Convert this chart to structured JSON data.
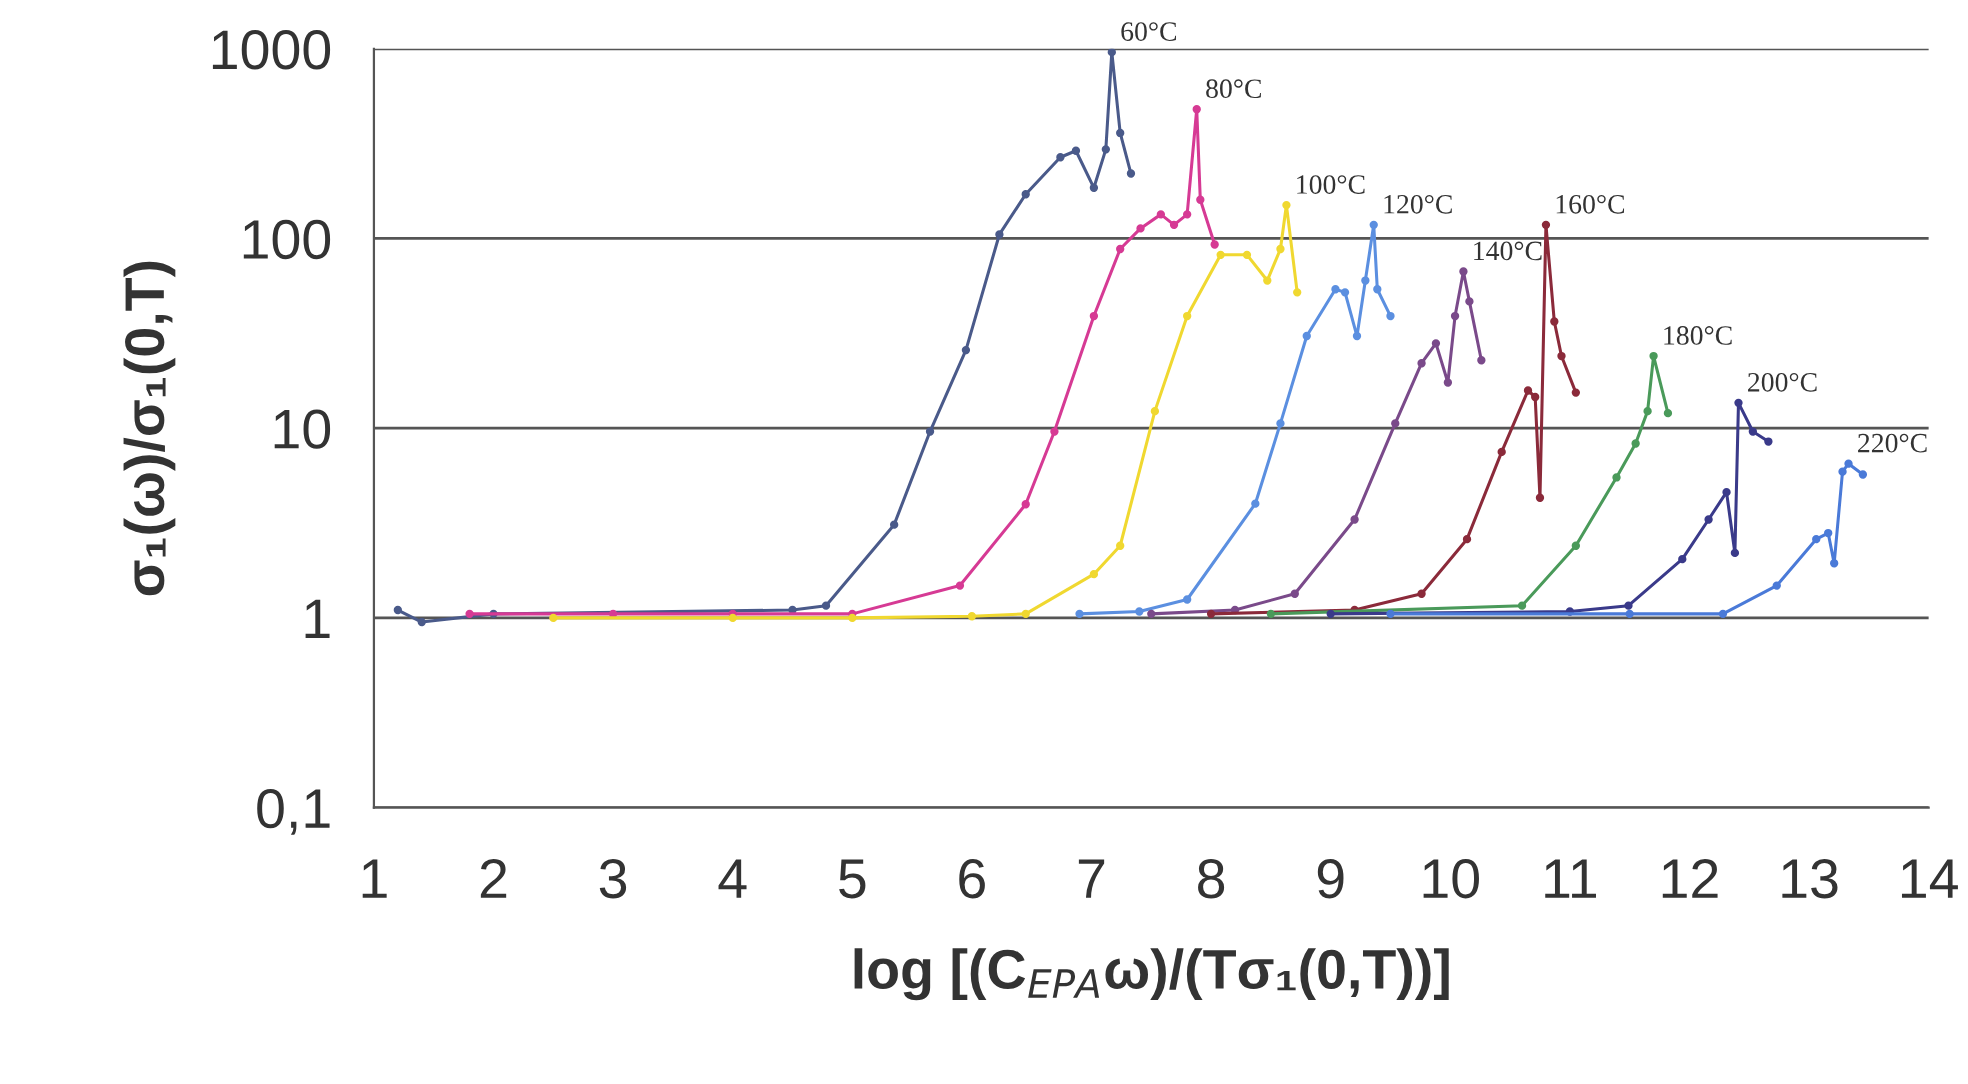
{
  "chart_data": {
    "type": "line",
    "xlabel": "log [(C$_{EPA}$ω)/(Tσ₁(0,T))]",
    "ylabel": "σ₁(ω)/σ₁(0,T)",
    "log": "y",
    "grid": "y",
    "legend": false,
    "marker": "circle",
    "line_style": "solid",
    "xlim": [
      1,
      14
    ],
    "xticks": [
      1,
      2,
      3,
      4,
      5,
      6,
      7,
      8,
      9,
      10,
      11,
      12,
      13,
      14
    ],
    "ylim": [
      0.1,
      1000
    ],
    "yticks": [
      {
        "value": 0.1,
        "label": "0,1"
      },
      1,
      10,
      100,
      1000
    ],
    "series": [
      {
        "name": "60°C",
        "color": "#4a5a8a",
        "x": [
          1.2,
          1.4,
          2,
          4.5,
          4.78,
          5.35,
          5.65,
          5.95,
          6.23,
          6.45,
          6.74,
          6.87,
          7.02,
          7.12,
          7.17,
          7.24,
          7.33
        ],
        "values": [
          1.1,
          0.95,
          1.05,
          1.1,
          1.16,
          3.1,
          9.6,
          25.8,
          105,
          171,
          268,
          290,
          185,
          295,
          960,
          360,
          220
        ]
      },
      {
        "name": "80°C",
        "color": "#d63a94",
        "x": [
          1.8,
          3,
          4,
          5,
          5.9,
          6.45,
          6.69,
          7.02,
          7.24,
          7.41,
          7.58,
          7.69,
          7.8,
          7.88,
          7.91,
          8.03
        ],
        "values": [
          1.05,
          1.05,
          1.05,
          1.05,
          1.48,
          3.97,
          9.6,
          39,
          88,
          113,
          134,
          118,
          134,
          480,
          160,
          93
        ]
      },
      {
        "name": "100°C",
        "color": "#f0d830",
        "x": [
          2.5,
          4,
          5,
          6,
          6.45,
          7.02,
          7.24,
          7.53,
          7.8,
          8.08,
          8.3,
          8.47,
          8.58,
          8.63,
          8.72
        ],
        "values": [
          1.0,
          1.0,
          1.0,
          1.02,
          1.05,
          1.7,
          2.4,
          12.3,
          39,
          82,
          82,
          60,
          88,
          150,
          52
        ]
      },
      {
        "name": "120°C",
        "color": "#5b8fe0",
        "x": [
          6.9,
          7.4,
          7.8,
          8.37,
          8.58,
          8.8,
          9.04,
          9.12,
          9.22,
          9.29,
          9.36,
          9.39,
          9.5
        ],
        "values": [
          1.05,
          1.08,
          1.25,
          4,
          10.6,
          30.6,
          54,
          52,
          30.6,
          60,
          118,
          54,
          39
        ]
      },
      {
        "name": "140°C",
        "color": "#7a4a8a",
        "x": [
          7.5,
          8.2,
          8.7,
          9.2,
          9.54,
          9.76,
          9.88,
          9.98,
          10.04,
          10.11,
          10.16,
          10.26
        ],
        "values": [
          1.05,
          1.1,
          1.34,
          3.3,
          10.6,
          22,
          28,
          17.4,
          39,
          67,
          46.6,
          22.8
        ]
      },
      {
        "name": "160°C",
        "color": "#8b2a3a",
        "x": [
          8,
          9.2,
          9.76,
          10.14,
          10.43,
          10.65,
          10.71,
          10.75,
          10.8,
          10.87,
          10.93,
          11.05
        ],
        "values": [
          1.05,
          1.1,
          1.34,
          2.6,
          7.5,
          15.8,
          14.6,
          4.3,
          118,
          36.5,
          24,
          15.4
        ]
      },
      {
        "name": "180°C",
        "color": "#4a9a5a",
        "x": [
          8.5,
          10.6,
          11.05,
          11.39,
          11.55,
          11.65,
          11.7,
          11.82
        ],
        "values": [
          1.05,
          1.16,
          2.4,
          5.5,
          8.3,
          12.3,
          24,
          12
        ]
      },
      {
        "name": "200°C",
        "color": "#3a3a8a",
        "x": [
          9,
          11,
          11.49,
          11.94,
          12.16,
          12.31,
          12.38,
          12.41,
          12.53,
          12.66
        ],
        "values": [
          1.05,
          1.08,
          1.16,
          2.04,
          3.3,
          4.6,
          2.2,
          13.6,
          9.6,
          8.5
        ]
      },
      {
        "name": "220°C",
        "color": "#4a7ad8",
        "x": [
          9.5,
          11.5,
          12.28,
          12.73,
          13.06,
          13.16,
          13.21,
          13.28,
          13.33,
          13.45
        ],
        "values": [
          1.05,
          1.05,
          1.05,
          1.48,
          2.6,
          2.8,
          1.94,
          5.9,
          6.5,
          5.7
        ]
      }
    ]
  }
}
